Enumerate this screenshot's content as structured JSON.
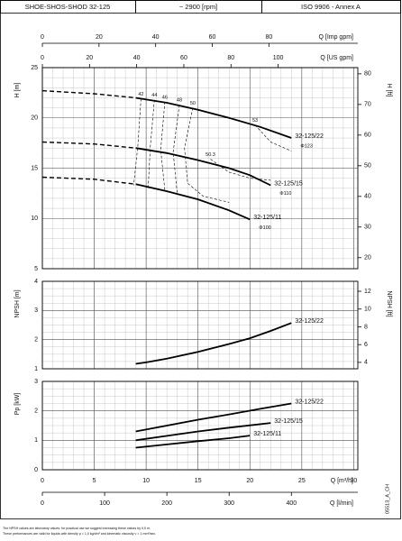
{
  "header": {
    "cells": [
      "SHOE-SHOS-SHOD 32-125",
      "~ 2900 [rpm]",
      "ISO 9906 - Annex A"
    ]
  },
  "q_axes": {
    "m3h": {
      "label": "Q [m³/h]",
      "xlim": [
        0,
        30.4
      ],
      "xticks": [
        0,
        5,
        10,
        15,
        20,
        25,
        30
      ]
    },
    "lmin": {
      "label": "Q [l/min]",
      "xlim": [
        0,
        506.7
      ],
      "xticks": [
        0,
        100,
        200,
        300,
        400
      ]
    },
    "imp": {
      "label": "Q [Imp gpm]",
      "xlim": [
        0,
        111.4
      ],
      "xticks": [
        0,
        20,
        40,
        60,
        80
      ]
    },
    "us": {
      "label": "Q [US gpm]",
      "xlim": [
        0,
        133.8
      ],
      "xticks": [
        0,
        20,
        40,
        60,
        80,
        100
      ]
    }
  },
  "chart_data": [
    {
      "type": "line",
      "ylabel": "H [m]",
      "y2label": "H [ft]",
      "ylim": [
        5,
        25
      ],
      "yticks": [
        5,
        10,
        15,
        20,
        25
      ],
      "y2lim": [
        16.4,
        82.02
      ],
      "y2ticks": [
        20,
        30,
        40,
        50,
        60,
        70,
        80
      ],
      "grid": true,
      "minor_grid": {
        "x": 1,
        "y": 1
      },
      "solid_from": 9,
      "series": [
        {
          "name": "32-125/22",
          "diameter": "Φ123",
          "color": "#000000",
          "x": [
            0,
            5,
            9,
            12,
            15,
            18,
            21,
            24
          ],
          "values": [
            22.7,
            22.4,
            22.0,
            21.5,
            20.8,
            20.0,
            19.1,
            18.0
          ]
        },
        {
          "name": "32-125/15",
          "diameter": "Φ110",
          "color": "#000000",
          "x": [
            0,
            5,
            9,
            12,
            15,
            18,
            20,
            22
          ],
          "values": [
            17.6,
            17.4,
            17.0,
            16.5,
            15.8,
            15.0,
            14.3,
            13.3
          ]
        },
        {
          "name": "32-125/11",
          "diameter": "Φ100",
          "color": "#000000",
          "x": [
            0,
            5,
            9,
            12,
            15,
            18,
            20
          ],
          "values": [
            14.1,
            13.9,
            13.4,
            12.7,
            11.9,
            10.8,
            9.9
          ]
        }
      ],
      "efficiency": [
        {
          "label": "42",
          "x": [
            9.5,
            9.2,
            8.8
          ],
          "values": [
            21.9,
            17.2,
            13.3
          ]
        },
        {
          "label": "44",
          "x": [
            10.8,
            10.4,
            10.2
          ],
          "values": [
            21.8,
            17.1,
            13.0
          ]
        },
        {
          "label": "46",
          "x": [
            11.8,
            11.4,
            11.8
          ],
          "values": [
            21.6,
            16.8,
            12.8
          ]
        },
        {
          "label": "48",
          "x": [
            13.2,
            12.6,
            13.0
          ],
          "values": [
            21.3,
            16.6,
            12.4
          ]
        },
        {
          "label": "50",
          "x": [
            14.5,
            13.7,
            14.0,
            15.5,
            18.0
          ],
          "values": [
            21.0,
            17.0,
            13.5,
            12.2,
            11.6
          ]
        },
        {
          "label": "50.3",
          "x": [
            16.2,
            18,
            20,
            22
          ],
          "values": [
            15.9,
            14.6,
            14.0,
            13.8
          ]
        },
        {
          "label": "53",
          "x": [
            20.5,
            22,
            24
          ],
          "values": [
            19.3,
            17.6,
            16.7
          ]
        }
      ]
    },
    {
      "type": "line",
      "ylabel": "NPSH [m]",
      "y2label": "NPSH [ft]",
      "ylim": [
        1,
        4
      ],
      "yticks": [
        1,
        2,
        3,
        4
      ],
      "y2lim": [
        3.28,
        13.12
      ],
      "y2ticks": [
        4,
        6,
        8,
        10,
        12
      ],
      "grid": true,
      "minor_grid": {
        "x": 1,
        "y": 0.25
      },
      "series": [
        {
          "name": "32-125/22",
          "color": "#000000",
          "x": [
            9,
            10,
            12,
            15,
            18,
            20,
            22,
            24
          ],
          "values": [
            1.17,
            1.22,
            1.35,
            1.58,
            1.85,
            2.05,
            2.3,
            2.57
          ]
        }
      ]
    },
    {
      "type": "line",
      "ylabel": "Pp [kW]",
      "ylim": [
        0,
        3
      ],
      "yticks": [
        0,
        1,
        2,
        3
      ],
      "grid": true,
      "minor_grid": {
        "x": 1,
        "y": 0.25
      },
      "series": [
        {
          "name": "32-125/22",
          "color": "#000000",
          "x": [
            9,
            12,
            15,
            18,
            21,
            24
          ],
          "values": [
            1.3,
            1.5,
            1.7,
            1.88,
            2.07,
            2.25
          ]
        },
        {
          "name": "32-125/15",
          "color": "#000000",
          "x": [
            9,
            12,
            15,
            18,
            22
          ],
          "values": [
            1.0,
            1.15,
            1.3,
            1.43,
            1.59
          ]
        },
        {
          "name": "32-125/11",
          "color": "#000000",
          "x": [
            9,
            12,
            15,
            18,
            20
          ],
          "values": [
            0.75,
            0.86,
            0.97,
            1.07,
            1.16
          ]
        }
      ]
    }
  ],
  "footnotes": [
    "The NPSH values are laboratory values: for practical use we suggest increasing these values by 0,5 m.",
    "These performances are valid for liquids with density ρ = 1,0 kg/dm³ and kinematic viscosity ν = 1 mm²/sec."
  ],
  "code": "05513_A_CH"
}
